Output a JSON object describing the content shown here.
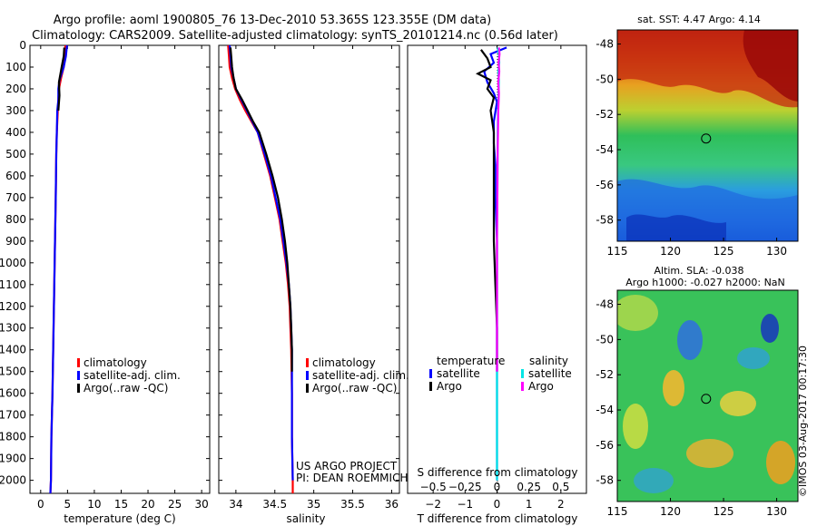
{
  "title": {
    "line1": "Argo profile: aoml 1900805_76 13-Dec-2010 53.365S 123.355E (DM data)",
    "line2": "Climatology: CARS2009. Satellite-adjusted climatology: synTS_20101214.nc (0.56d later)"
  },
  "colors": {
    "climatology": "#ff0000",
    "satellite": "#0000ff",
    "argo": "#000000",
    "satellite_salinity": "#00e5e5",
    "argo_salinity": "#ff00ff",
    "map_marker": "#000000"
  },
  "legend": {
    "climatology": "climatology",
    "satellite_adj": "satellite-adj. clim.",
    "argo_raw": "Argo(..raw -QC)",
    "temperature_heading": "temperature",
    "salinity_heading": "salinity",
    "satellite": "satellite",
    "argo": "Argo"
  },
  "credit": {
    "project": "US ARGO PROJECT",
    "pi": "PI: DEAN ROEMMICH"
  },
  "depth_axis": {
    "ticks": [
      0,
      100,
      200,
      300,
      400,
      500,
      600,
      700,
      800,
      900,
      1000,
      1100,
      1200,
      1300,
      1400,
      1500,
      1600,
      1700,
      1800,
      1900,
      2000
    ],
    "labels": [
      "0",
      "100",
      "200",
      "300",
      "400",
      "500",
      "600",
      "700",
      "800",
      "900",
      "1000",
      "1100",
      "1200",
      "1300",
      "1400",
      "1500",
      "1600",
      "1700",
      "1800",
      "1900",
      "2000"
    ]
  },
  "chart_data": [
    {
      "type": "line",
      "xlabel": "temperature (deg C)",
      "x_ticks": [
        0,
        5,
        10,
        15,
        20,
        25,
        30
      ],
      "x_tick_labels": [
        "0",
        "5",
        "10",
        "15",
        "20",
        "25",
        "30"
      ],
      "xlim": [
        -2,
        31.5
      ],
      "ylim": [
        2060,
        0
      ],
      "series": [
        {
          "name": "climatology",
          "color": "#ff0000",
          "points": [
            [
              4.6,
              0
            ],
            [
              4.5,
              50
            ],
            [
              4.3,
              100
            ],
            [
              3.8,
              150
            ],
            [
              3.4,
              200
            ],
            [
              3.2,
              300
            ],
            [
              3.0,
              400
            ],
            [
              2.9,
              500
            ],
            [
              2.8,
              700
            ],
            [
              2.6,
              1000
            ],
            [
              2.4,
              1300
            ],
            [
              2.2,
              1600
            ],
            [
              2.0,
              1800
            ],
            [
              1.9,
              2000
            ],
            [
              1.8,
              2060
            ]
          ]
        },
        {
          "name": "satellite-adj. clim.",
          "color": "#0000ff",
          "points": [
            [
              4.9,
              0
            ],
            [
              4.7,
              50
            ],
            [
              4.3,
              100
            ],
            [
              3.5,
              160
            ],
            [
              3.3,
              200
            ],
            [
              3.3,
              250
            ],
            [
              3.1,
              300
            ],
            [
              3.0,
              400
            ],
            [
              2.9,
              500
            ],
            [
              2.8,
              700
            ],
            [
              2.6,
              1000
            ],
            [
              2.4,
              1300
            ],
            [
              2.2,
              1600
            ],
            [
              2.0,
              1800
            ],
            [
              1.9,
              2000
            ],
            [
              1.8,
              2060
            ]
          ]
        },
        {
          "name": "Argo(..raw -QC)",
          "color": "#000000",
          "points": [
            [
              4.4,
              10
            ],
            [
              4.3,
              50
            ],
            [
              3.9,
              100
            ],
            [
              3.4,
              170
            ],
            [
              3.5,
              230
            ],
            [
              3.3,
              300
            ]
          ]
        }
      ]
    },
    {
      "type": "line",
      "xlabel": "salinity",
      "x_ticks": [
        34,
        34.5,
        35,
        35.5,
        36
      ],
      "x_tick_labels": [
        "34",
        "34.5",
        "35",
        "35.5",
        "36"
      ],
      "xlim": [
        33.78,
        36.1
      ],
      "ylim": [
        2060,
        0
      ],
      "series": [
        {
          "name": "climatology",
          "color": "#ff0000",
          "points": [
            [
              33.9,
              0
            ],
            [
              33.91,
              50
            ],
            [
              33.92,
              100
            ],
            [
              33.95,
              150
            ],
            [
              33.99,
              200
            ],
            [
              34.05,
              250
            ],
            [
              34.12,
              300
            ],
            [
              34.2,
              350
            ],
            [
              34.28,
              400
            ],
            [
              34.36,
              500
            ],
            [
              34.44,
              600
            ],
            [
              34.5,
              700
            ],
            [
              34.56,
              800
            ],
            [
              34.6,
              900
            ],
            [
              34.64,
              1000
            ],
            [
              34.67,
              1100
            ],
            [
              34.69,
              1200
            ],
            [
              34.7,
              1300
            ],
            [
              34.71,
              1400
            ],
            [
              34.72,
              1600
            ],
            [
              34.72,
              1800
            ],
            [
              34.73,
              2000
            ],
            [
              34.73,
              2060
            ]
          ]
        },
        {
          "name": "satellite-adj. clim.",
          "color": "#0000ff",
          "points": [
            [
              33.92,
              0
            ],
            [
              33.93,
              50
            ],
            [
              33.94,
              100
            ],
            [
              33.97,
              150
            ],
            [
              34.0,
              200
            ],
            [
              34.07,
              250
            ],
            [
              34.14,
              300
            ],
            [
              34.21,
              350
            ],
            [
              34.28,
              400
            ],
            [
              34.37,
              500
            ],
            [
              34.45,
              600
            ],
            [
              34.51,
              700
            ],
            [
              34.57,
              800
            ],
            [
              34.61,
              900
            ],
            [
              34.65,
              1000
            ],
            [
              34.68,
              1100
            ],
            [
              34.7,
              1200
            ],
            [
              34.71,
              1300
            ],
            [
              34.72,
              1400
            ],
            [
              34.72,
              1600
            ],
            [
              34.72,
              1800
            ],
            [
              34.73,
              2000
            ]
          ]
        },
        {
          "name": "Argo(..raw -QC)",
          "color": "#000000",
          "points": [
            [
              33.93,
              10
            ],
            [
              33.94,
              50
            ],
            [
              33.95,
              100
            ],
            [
              33.97,
              150
            ],
            [
              34.0,
              200
            ],
            [
              34.08,
              250
            ],
            [
              34.15,
              300
            ],
            [
              34.22,
              350
            ],
            [
              34.3,
              400
            ],
            [
              34.39,
              500
            ],
            [
              34.47,
              600
            ],
            [
              34.54,
              700
            ],
            [
              34.59,
              800
            ],
            [
              34.63,
              900
            ],
            [
              34.66,
              1000
            ],
            [
              34.68,
              1100
            ],
            [
              34.7,
              1200
            ],
            [
              34.71,
              1300
            ],
            [
              34.72,
              1400
            ],
            [
              34.72,
              1500
            ]
          ]
        }
      ]
    },
    {
      "type": "line",
      "xlabel_top": "S difference from climatology",
      "xlabel": "T difference from climatology",
      "x_ticks": [
        -2,
        -1,
        0,
        1,
        2
      ],
      "x_tick_labels": [
        "−2",
        "−1",
        "0",
        "1",
        "2"
      ],
      "x_top_ticks": [
        -0.5,
        -0.25,
        0,
        0.25,
        0.5
      ],
      "x_top_tick_labels": [
        "−0.5",
        "−0.25",
        "0",
        "0.25",
        "0.5"
      ],
      "xlim": [
        -2.8,
        2.8
      ],
      "ylim": [
        2060,
        0
      ],
      "series": [
        {
          "name": "temperature satellite",
          "color": "#0000ff",
          "points": [
            [
              0.3,
              10
            ],
            [
              -0.2,
              40
            ],
            [
              -0.1,
              80
            ],
            [
              -0.4,
              120
            ],
            [
              -0.3,
              170
            ],
            [
              -0.1,
              220
            ],
            [
              0.0,
              260
            ],
            [
              -0.1,
              350
            ],
            [
              -0.1,
              450
            ],
            [
              -0.05,
              550
            ],
            [
              -0.05,
              700
            ],
            [
              0.0,
              900
            ],
            [
              0.0,
              1100
            ],
            [
              0.0,
              1400
            ],
            [
              0.0,
              1700
            ],
            [
              0.0,
              2000
            ]
          ]
        },
        {
          "name": "temperature Argo",
          "color": "#000000",
          "points": [
            [
              -0.5,
              20
            ],
            [
              -0.3,
              60
            ],
            [
              -0.2,
              100
            ],
            [
              -0.6,
              130
            ],
            [
              -0.2,
              160
            ],
            [
              -0.3,
              200
            ],
            [
              -0.1,
              240
            ],
            [
              -0.2,
              300
            ],
            [
              -0.1,
              400
            ],
            [
              -0.1,
              500
            ],
            [
              -0.1,
              700
            ],
            [
              -0.1,
              900
            ],
            [
              -0.05,
              1100
            ],
            [
              0.0,
              1300
            ],
            [
              0.0,
              1500
            ]
          ]
        },
        {
          "name": "salinity satellite",
          "color": "#00e5e5",
          "points": [
            [
              0.02,
              10
            ],
            [
              0.06,
              40
            ],
            [
              0.07,
              80
            ],
            [
              0.04,
              120
            ],
            [
              0.06,
              160
            ],
            [
              0.05,
              220
            ],
            [
              0.03,
              300
            ],
            [
              0.02,
              400
            ],
            [
              0.02,
              500
            ],
            [
              0.01,
              700
            ],
            [
              0.0,
              900
            ],
            [
              0.0,
              1200
            ],
            [
              0.0,
              1600
            ],
            [
              0.0,
              2000
            ]
          ]
        },
        {
          "name": "salinity Argo",
          "color": "#ff00ff",
          "points": [
            [
              0.06,
              10
            ],
            [
              0.08,
              40
            ],
            [
              0.05,
              80
            ],
            [
              0.07,
              120
            ],
            [
              0.04,
              170
            ],
            [
              0.06,
              220
            ],
            [
              0.04,
              300
            ],
            [
              0.03,
              400
            ],
            [
              0.02,
              500
            ],
            [
              0.01,
              700
            ],
            [
              0.0,
              900
            ],
            [
              0.0,
              1200
            ],
            [
              0.0,
              1500
            ]
          ]
        }
      ]
    },
    {
      "type": "heatmap",
      "title": "sat. SST: 4.47  Argo: 4.14",
      "x_ticks": [
        115,
        120,
        125,
        130
      ],
      "x_tick_labels": [
        "115",
        "120",
        "125",
        "130"
      ],
      "y_ticks": [
        -48,
        -50,
        -52,
        -54,
        -56,
        -58
      ],
      "y_tick_labels": [
        "-48",
        "-50",
        "-52",
        "-54",
        "-56",
        "-58"
      ],
      "xlim": [
        115,
        132
      ],
      "ylim": [
        -59.2,
        -47.2
      ],
      "marker": {
        "lon": 123.355,
        "lat": -53.365
      }
    },
    {
      "type": "heatmap",
      "title_line1": "Altim. SLA: -0.038",
      "title_line2": "Argo h1000: -0.027 h2000: NaN",
      "x_ticks": [
        115,
        120,
        125,
        130
      ],
      "x_tick_labels": [
        "115",
        "120",
        "125",
        "130"
      ],
      "y_ticks": [
        -48,
        -50,
        -52,
        -54,
        -56,
        -58
      ],
      "y_tick_labels": [
        "-48",
        "-50",
        "-52",
        "-54",
        "-56",
        "-58"
      ],
      "xlim": [
        115,
        132
      ],
      "ylim": [
        -59.2,
        -47.2
      ],
      "marker": {
        "lon": 123.355,
        "lat": -53.365
      }
    }
  ],
  "stamp": "©IMOS 03-Aug-2017 00:17:30"
}
